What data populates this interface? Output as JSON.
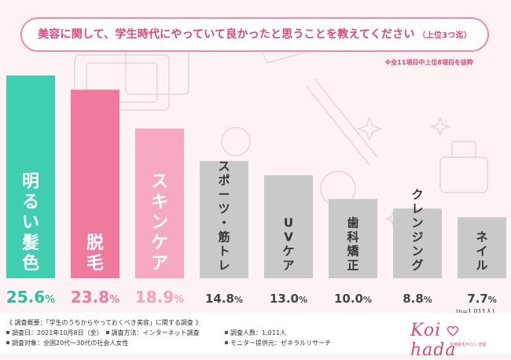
{
  "title": "美容に関して、学生時代にやっていて良かったと思うことを教えてください",
  "title_sub": "（上位3つ迄）",
  "note": "※全11項目中上位8項目を抜粋",
  "sample_note": "(n=1,011人)",
  "chart_data": {
    "type": "bar",
    "categories": [
      "明るい髪色",
      "脱毛",
      "スキンケア",
      "スポーツ・筋トレ",
      "UVケア",
      "歯科矯正",
      "クレンジング",
      "ネイル"
    ],
    "values": [
      25.6,
      23.8,
      18.9,
      14.8,
      13.0,
      10.0,
      8.8,
      7.7
    ],
    "value_labels": [
      "25.6",
      "23.8",
      "18.9",
      "14.8",
      "13.0",
      "10.0",
      "8.8",
      "7.7"
    ],
    "unit": "%",
    "ylim": [
      0,
      25.6
    ],
    "colors": [
      "#3fcfb0",
      "#f07a9d",
      "#f6a9c0",
      "#c9c9c9",
      "#c9c9c9",
      "#c9c9c9",
      "#c9c9c9",
      "#c9c9c9"
    ],
    "value_colors": [
      "#2bbf9f",
      "#f07a9d",
      "#f4a3bc",
      "#444444",
      "#444444",
      "#444444",
      "#444444",
      "#444444"
    ],
    "label_colors": [
      "#ffffff",
      "#ffffff",
      "#ffffff",
      "#333333",
      "#333333",
      "#333333",
      "#333333",
      "#333333"
    ]
  },
  "footer": {
    "left": [
      "《 調査概要：「学生のうちからやっておくべき美容」に関する調査 》",
      "調査日：2021年10月8日（金）",
      "調査方法：インターネット調査",
      "調査対象：全国20代〜30代の社会人女性"
    ],
    "right": [
      "調査人数：1,011人",
      "モニター提供元：ゼネラルリサーチ"
    ]
  },
  "logo": {
    "text_left": "Koi",
    "text_right": "hada",
    "tagline": "全身脱毛サロン 恋肌"
  }
}
